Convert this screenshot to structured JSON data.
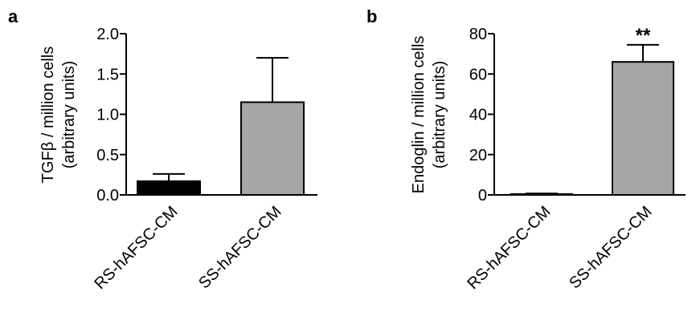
{
  "figure": {
    "panels": [
      "a",
      "b"
    ]
  },
  "chart_data": [
    {
      "type": "bar",
      "panel": "a",
      "ylabel": [
        "TGFβ / million cells",
        "(arbitrary units)"
      ],
      "xlabel": "",
      "categories": [
        "RS-hAFSC-CM",
        "SS-hAFSC-CM"
      ],
      "values": [
        0.17,
        1.15
      ],
      "errors": [
        0.09,
        0.55
      ],
      "colors": [
        "#000000",
        "#a6a6a6"
      ],
      "ylim": [
        0,
        2.0
      ],
      "yticks": [
        "0.0",
        "0.5",
        "1.0",
        "1.5",
        "2.0"
      ],
      "annotations": [
        "",
        ""
      ],
      "grid": false
    },
    {
      "type": "bar",
      "panel": "b",
      "ylabel": [
        "Endoglin / million cells",
        "(arbitrary units)"
      ],
      "xlabel": "",
      "categories": [
        "RS-hAFSC-CM",
        "SS-hAFSC-CM"
      ],
      "values": [
        0.4,
        66
      ],
      "errors": [
        0.3,
        8.5
      ],
      "colors": [
        "#ffffff",
        "#a6a6a6"
      ],
      "ylim": [
        0,
        80
      ],
      "yticks": [
        "0",
        "20",
        "40",
        "60",
        "80"
      ],
      "annotations": [
        "",
        "**"
      ],
      "grid": false
    }
  ]
}
